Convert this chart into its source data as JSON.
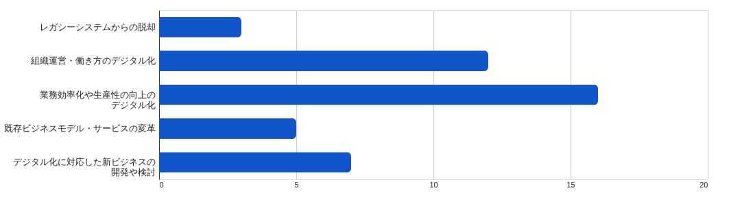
{
  "chart_data": {
    "type": "bar",
    "orientation": "horizontal",
    "categories": [
      "レガシーシステムからの脱却",
      "組織運営・働き方のデジタル化",
      "業務効率化や生産性の向上のデジタル化",
      "既存ビジネスモデル・サービスの変革",
      "デジタル化に対応した新ビジネスの開発や検討"
    ],
    "values": [
      3,
      12,
      16,
      5,
      7
    ],
    "color": "#1155cc",
    "xlim": [
      0,
      20
    ],
    "xticks": [
      0,
      5,
      10,
      15,
      20
    ],
    "grid": "x"
  }
}
